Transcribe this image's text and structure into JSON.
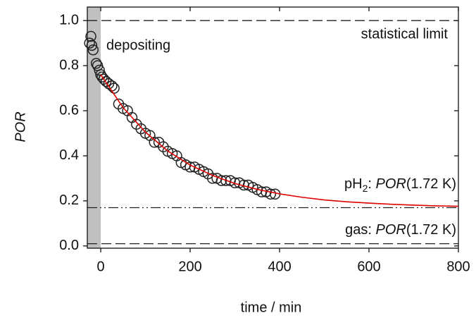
{
  "chart_data": {
    "type": "scatter",
    "x_label": "time / min",
    "y_label": "POR",
    "xlim": [
      -30,
      800
    ],
    "xticks": [
      0,
      200,
      400,
      600,
      800
    ],
    "ylim": [
      -0.01,
      1.06
    ],
    "yticks": [
      {
        "value": 0,
        "label": "0.0"
      },
      0.2,
      0.4,
      0.6,
      0.8,
      {
        "value": 1,
        "label": "1.0"
      }
    ],
    "shaded_xrange": [
      -30,
      0
    ],
    "shade_color": "#c0c0c0",
    "annotations": {
      "depositing": "depositing",
      "limit": "statistical limit",
      "ph2": [
        "pH",
        "2",
        ": ",
        "POR",
        "(1.72 K)"
      ],
      "gas": [
        "gas: ",
        "POR",
        "(1.72 K)"
      ]
    },
    "hlines": [
      {
        "value": 1.0,
        "style": "dashed"
      },
      {
        "value": 0.17,
        "style": "dashdotdot"
      },
      {
        "value": 0.01,
        "style": "dashed"
      }
    ],
    "series": [
      {
        "type": "scatter",
        "color": "#222222",
        "x": [
          -25,
          -22,
          -20,
          -17,
          -10,
          -7,
          -3,
          0,
          3,
          7,
          12,
          18,
          25,
          30,
          40,
          50,
          60,
          70,
          80,
          90,
          100,
          110,
          120,
          130,
          140,
          150,
          160,
          170,
          180,
          190,
          200,
          210,
          220,
          230,
          240,
          250,
          260,
          270,
          280,
          290,
          300,
          310,
          320,
          330,
          340,
          350,
          360,
          370,
          380,
          390
        ],
        "values": [
          0.9,
          0.93,
          0.89,
          0.87,
          0.81,
          0.8,
          0.78,
          0.76,
          0.75,
          0.74,
          0.73,
          0.72,
          0.71,
          0.7,
          0.63,
          0.61,
          0.6,
          0.57,
          0.54,
          0.52,
          0.5,
          0.49,
          0.46,
          0.46,
          0.44,
          0.42,
          0.41,
          0.4,
          0.37,
          0.36,
          0.35,
          0.35,
          0.34,
          0.33,
          0.32,
          0.3,
          0.3,
          0.29,
          0.29,
          0.29,
          0.28,
          0.28,
          0.27,
          0.27,
          0.26,
          0.25,
          0.24,
          0.24,
          0.23,
          0.23
        ]
      },
      {
        "type": "line",
        "color": "#e00000",
        "x": [
          0,
          50,
          100,
          150,
          200,
          250,
          300,
          350,
          400,
          450,
          500,
          550,
          600,
          650,
          700,
          750,
          800
        ],
        "values": [
          0.76,
          0.614,
          0.505,
          0.421,
          0.359,
          0.313,
          0.277,
          0.251,
          0.231,
          0.216,
          0.204,
          0.196,
          0.19,
          0.185,
          0.181,
          0.178,
          0.176
        ]
      }
    ]
  }
}
